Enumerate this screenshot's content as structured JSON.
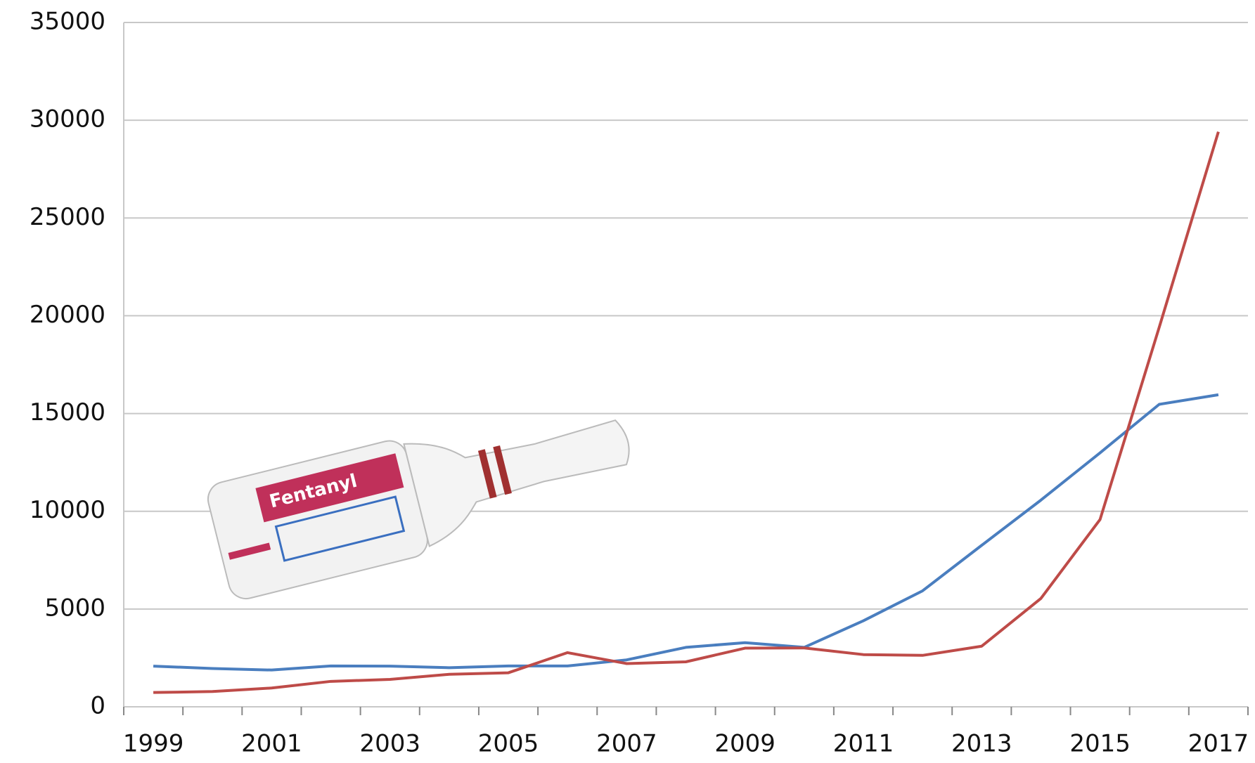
{
  "chart_data": {
    "type": "line",
    "categories": [
      "1999",
      null,
      "2001",
      null,
      "2003",
      null,
      "2005",
      null,
      "2007",
      null,
      "2009",
      null,
      "2011",
      null,
      "2013",
      null,
      "2015",
      null,
      "2017"
    ],
    "series": [
      {
        "color": "#4a7ebf",
        "values": [
          2080,
          1960,
          1880,
          2090,
          2080,
          2000,
          2090,
          2090,
          2400,
          3040,
          3280,
          3040,
          4400,
          5930,
          8260,
          10570,
          12990,
          15470,
          15960
        ]
      },
      {
        "color": "#be4b48",
        "values": [
          730,
          780,
          960,
          1300,
          1400,
          1660,
          1740,
          2770,
          2210,
          2300,
          3000,
          3010,
          2670,
          2630,
          3100,
          5540,
          9580,
          19410,
          29410
        ]
      }
    ],
    "ylim": [
      0,
      35000
    ],
    "yticks": [
      0,
      5000,
      10000,
      15000,
      20000,
      25000,
      30000,
      35000
    ],
    "grid": true,
    "annotations": [
      "Fentanyl"
    ]
  }
}
